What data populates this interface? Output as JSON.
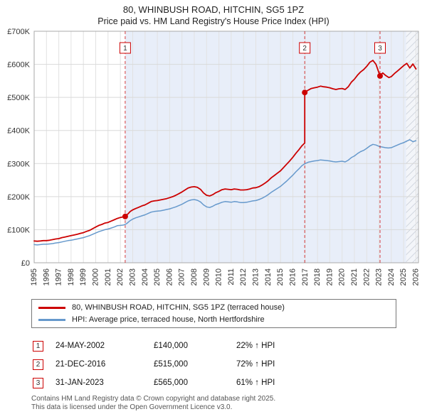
{
  "header": {
    "title": "80, WHINBUSH ROAD, HITCHIN, SG5 1PZ",
    "subtitle": "Price paid vs. HM Land Registry's House Price Index (HPI)"
  },
  "legend": {
    "items": [
      {
        "label": "80, WHINBUSH ROAD, HITCHIN, SG5 1PZ (terraced house)",
        "color": "#cc0000"
      },
      {
        "label": "HPI: Average price, terraced house, North Hertfordshire",
        "color": "#6699cc"
      }
    ]
  },
  "sales": [
    {
      "num": "1",
      "date": "24-MAY-2002",
      "price": "£140,000",
      "vs_hpi": "22% ↑ HPI",
      "year": 2002.39,
      "value": 140000
    },
    {
      "num": "2",
      "date": "21-DEC-2016",
      "price": "£515,000",
      "vs_hpi": "72% ↑ HPI",
      "year": 2016.97,
      "value": 515000
    },
    {
      "num": "3",
      "date": "31-JAN-2023",
      "price": "£565,000",
      "vs_hpi": "61% ↑ HPI",
      "year": 2023.08,
      "value": 565000
    }
  ],
  "footer": {
    "line1": "Contains HM Land Registry data © Crown copyright and database right 2025.",
    "line2": "This data is licensed under the Open Government Licence v3.0."
  },
  "chart_data": {
    "type": "line",
    "title": "80, WHINBUSH ROAD, HITCHIN, SG5 1PZ — Price paid vs. HPI",
    "x_min": 1995,
    "x_max": 2026.2,
    "y_min": 0,
    "y_max": 700000,
    "x_ticks": [
      1995,
      1996,
      1997,
      1998,
      1999,
      2000,
      2001,
      2002,
      2003,
      2004,
      2005,
      2006,
      2007,
      2008,
      2009,
      2010,
      2011,
      2012,
      2013,
      2014,
      2015,
      2016,
      2017,
      2018,
      2019,
      2020,
      2021,
      2022,
      2023,
      2024,
      2025,
      2026
    ],
    "y_ticks": [
      {
        "v": 0,
        "label": "£0"
      },
      {
        "v": 100000,
        "label": "£100K"
      },
      {
        "v": 200000,
        "label": "£200K"
      },
      {
        "v": 300000,
        "label": "£300K"
      },
      {
        "v": 400000,
        "label": "£400K"
      },
      {
        "v": 500000,
        "label": "£500K"
      },
      {
        "v": 600000,
        "label": "£600K"
      },
      {
        "v": 700000,
        "label": "£700K"
      }
    ],
    "shade": {
      "from": 2002.39,
      "to": 2026.2,
      "color": "#e8eef9"
    },
    "hatch": {
      "from": 2025.2,
      "to": 2026.2
    },
    "series": [
      {
        "name": "80, WHINBUSH ROAD, HITCHIN, SG5 1PZ (terraced house)",
        "color": "#cc0000",
        "points": [
          [
            1995.0,
            66000
          ],
          [
            1995.25,
            65000
          ],
          [
            1995.5,
            66000
          ],
          [
            1995.75,
            67000
          ],
          [
            1996.0,
            67000
          ],
          [
            1996.25,
            68000
          ],
          [
            1996.5,
            70000
          ],
          [
            1996.75,
            72000
          ],
          [
            1997.0,
            73000
          ],
          [
            1997.25,
            76000
          ],
          [
            1997.5,
            78000
          ],
          [
            1997.75,
            80000
          ],
          [
            1998.0,
            82000
          ],
          [
            1998.25,
            84000
          ],
          [
            1998.5,
            86000
          ],
          [
            1998.75,
            89000
          ],
          [
            1999.0,
            91000
          ],
          [
            1999.25,
            95000
          ],
          [
            1999.5,
            98000
          ],
          [
            1999.75,
            103000
          ],
          [
            2000.0,
            108000
          ],
          [
            2000.25,
            113000
          ],
          [
            2000.5,
            116000
          ],
          [
            2000.75,
            120000
          ],
          [
            2001.0,
            122000
          ],
          [
            2001.25,
            126000
          ],
          [
            2001.5,
            130000
          ],
          [
            2001.75,
            134000
          ],
          [
            2002.0,
            137000
          ],
          [
            2002.39,
            140000
          ],
          [
            2002.6,
            147000
          ],
          [
            2002.8,
            155000
          ],
          [
            2003.0,
            160000
          ],
          [
            2003.25,
            164000
          ],
          [
            2003.5,
            168000
          ],
          [
            2003.75,
            172000
          ],
          [
            2004.0,
            175000
          ],
          [
            2004.25,
            180000
          ],
          [
            2004.5,
            185000
          ],
          [
            2004.75,
            187000
          ],
          [
            2005.0,
            188000
          ],
          [
            2005.25,
            190000
          ],
          [
            2005.5,
            192000
          ],
          [
            2005.75,
            194000
          ],
          [
            2006.0,
            197000
          ],
          [
            2006.25,
            200000
          ],
          [
            2006.5,
            204000
          ],
          [
            2006.75,
            209000
          ],
          [
            2007.0,
            214000
          ],
          [
            2007.25,
            220000
          ],
          [
            2007.5,
            226000
          ],
          [
            2007.75,
            229000
          ],
          [
            2008.0,
            230000
          ],
          [
            2008.25,
            228000
          ],
          [
            2008.5,
            222000
          ],
          [
            2008.75,
            211000
          ],
          [
            2009.0,
            204000
          ],
          [
            2009.25,
            202000
          ],
          [
            2009.5,
            206000
          ],
          [
            2009.75,
            212000
          ],
          [
            2010.0,
            216000
          ],
          [
            2010.25,
            221000
          ],
          [
            2010.5,
            223000
          ],
          [
            2010.75,
            222000
          ],
          [
            2011.0,
            221000
          ],
          [
            2011.25,
            223000
          ],
          [
            2011.5,
            222000
          ],
          [
            2011.75,
            220000
          ],
          [
            2012.0,
            220000
          ],
          [
            2012.25,
            221000
          ],
          [
            2012.5,
            223000
          ],
          [
            2012.75,
            226000
          ],
          [
            2013.0,
            227000
          ],
          [
            2013.25,
            230000
          ],
          [
            2013.5,
            235000
          ],
          [
            2013.75,
            241000
          ],
          [
            2014.0,
            248000
          ],
          [
            2014.25,
            257000
          ],
          [
            2014.5,
            264000
          ],
          [
            2014.75,
            271000
          ],
          [
            2015.0,
            278000
          ],
          [
            2015.25,
            288000
          ],
          [
            2015.5,
            298000
          ],
          [
            2015.75,
            308000
          ],
          [
            2016.0,
            319000
          ],
          [
            2016.25,
            331000
          ],
          [
            2016.5,
            342000
          ],
          [
            2016.75,
            354000
          ],
          [
            2016.97,
            362000
          ],
          [
            2016.97,
            515000
          ],
          [
            2017.25,
            522000
          ],
          [
            2017.5,
            527000
          ],
          [
            2017.75,
            529000
          ],
          [
            2018.0,
            531000
          ],
          [
            2018.25,
            534000
          ],
          [
            2018.5,
            532000
          ],
          [
            2018.75,
            531000
          ],
          [
            2019.0,
            529000
          ],
          [
            2019.25,
            526000
          ],
          [
            2019.5,
            524000
          ],
          [
            2019.75,
            526000
          ],
          [
            2020.0,
            527000
          ],
          [
            2020.25,
            524000
          ],
          [
            2020.5,
            532000
          ],
          [
            2020.75,
            546000
          ],
          [
            2021.0,
            555000
          ],
          [
            2021.25,
            567000
          ],
          [
            2021.5,
            577000
          ],
          [
            2021.75,
            584000
          ],
          [
            2022.0,
            594000
          ],
          [
            2022.25,
            606000
          ],
          [
            2022.5,
            612000
          ],
          [
            2022.75,
            600000
          ],
          [
            2023.08,
            565000
          ],
          [
            2023.3,
            574000
          ],
          [
            2023.55,
            566000
          ],
          [
            2023.8,
            560000
          ],
          [
            2024.0,
            563000
          ],
          [
            2024.25,
            572000
          ],
          [
            2024.5,
            580000
          ],
          [
            2024.75,
            588000
          ],
          [
            2025.0,
            596000
          ],
          [
            2025.25,
            603000
          ],
          [
            2025.5,
            589000
          ],
          [
            2025.75,
            601000
          ],
          [
            2026.0,
            586000
          ]
        ]
      },
      {
        "name": "HPI: Average price, terraced house, North Hertfordshire",
        "color": "#6699cc",
        "points": [
          [
            1995.0,
            55000
          ],
          [
            1995.25,
            54000
          ],
          [
            1995.5,
            55000
          ],
          [
            1995.75,
            56000
          ],
          [
            1996.0,
            56000
          ],
          [
            1996.25,
            57000
          ],
          [
            1996.5,
            58000
          ],
          [
            1996.75,
            60000
          ],
          [
            1997.0,
            61000
          ],
          [
            1997.25,
            63000
          ],
          [
            1997.5,
            65000
          ],
          [
            1997.75,
            67000
          ],
          [
            1998.0,
            68000
          ],
          [
            1998.25,
            70000
          ],
          [
            1998.5,
            72000
          ],
          [
            1998.75,
            74000
          ],
          [
            1999.0,
            76000
          ],
          [
            1999.25,
            79000
          ],
          [
            1999.5,
            82000
          ],
          [
            1999.75,
            86000
          ],
          [
            2000.0,
            90000
          ],
          [
            2000.25,
            94000
          ],
          [
            2000.5,
            97000
          ],
          [
            2000.75,
            100000
          ],
          [
            2001.0,
            102000
          ],
          [
            2001.25,
            105000
          ],
          [
            2001.5,
            108000
          ],
          [
            2001.75,
            112000
          ],
          [
            2002.0,
            113000
          ],
          [
            2002.25,
            114000
          ],
          [
            2002.5,
            118000
          ],
          [
            2002.75,
            126000
          ],
          [
            2003.0,
            132000
          ],
          [
            2003.25,
            136000
          ],
          [
            2003.5,
            139000
          ],
          [
            2003.75,
            142000
          ],
          [
            2004.0,
            145000
          ],
          [
            2004.25,
            149000
          ],
          [
            2004.5,
            153000
          ],
          [
            2004.75,
            155000
          ],
          [
            2005.0,
            156000
          ],
          [
            2005.25,
            157000
          ],
          [
            2005.5,
            159000
          ],
          [
            2005.75,
            161000
          ],
          [
            2006.0,
            163000
          ],
          [
            2006.25,
            166000
          ],
          [
            2006.5,
            169000
          ],
          [
            2006.75,
            173000
          ],
          [
            2007.0,
            177000
          ],
          [
            2007.25,
            182000
          ],
          [
            2007.5,
            187000
          ],
          [
            2007.75,
            190000
          ],
          [
            2008.0,
            191000
          ],
          [
            2008.25,
            189000
          ],
          [
            2008.5,
            184000
          ],
          [
            2008.75,
            175000
          ],
          [
            2009.0,
            169000
          ],
          [
            2009.25,
            167000
          ],
          [
            2009.5,
            171000
          ],
          [
            2009.75,
            176000
          ],
          [
            2010.0,
            179000
          ],
          [
            2010.25,
            183000
          ],
          [
            2010.5,
            185000
          ],
          [
            2010.75,
            184000
          ],
          [
            2011.0,
            183000
          ],
          [
            2011.25,
            185000
          ],
          [
            2011.5,
            184000
          ],
          [
            2011.75,
            182000
          ],
          [
            2012.0,
            182000
          ],
          [
            2012.25,
            183000
          ],
          [
            2012.5,
            185000
          ],
          [
            2012.75,
            187000
          ],
          [
            2013.0,
            188000
          ],
          [
            2013.25,
            191000
          ],
          [
            2013.5,
            195000
          ],
          [
            2013.75,
            200000
          ],
          [
            2014.0,
            206000
          ],
          [
            2014.25,
            213000
          ],
          [
            2014.5,
            219000
          ],
          [
            2014.75,
            225000
          ],
          [
            2015.0,
            231000
          ],
          [
            2015.25,
            239000
          ],
          [
            2015.5,
            247000
          ],
          [
            2015.75,
            256000
          ],
          [
            2016.0,
            265000
          ],
          [
            2016.25,
            275000
          ],
          [
            2016.5,
            284000
          ],
          [
            2016.75,
            294000
          ],
          [
            2017.0,
            300000
          ],
          [
            2017.25,
            304000
          ],
          [
            2017.5,
            306000
          ],
          [
            2017.75,
            308000
          ],
          [
            2018.0,
            309000
          ],
          [
            2018.25,
            311000
          ],
          [
            2018.5,
            310000
          ],
          [
            2018.75,
            309000
          ],
          [
            2019.0,
            308000
          ],
          [
            2019.25,
            306000
          ],
          [
            2019.5,
            305000
          ],
          [
            2019.75,
            306000
          ],
          [
            2020.0,
            307000
          ],
          [
            2020.25,
            305000
          ],
          [
            2020.5,
            310000
          ],
          [
            2020.75,
            318000
          ],
          [
            2021.0,
            323000
          ],
          [
            2021.25,
            330000
          ],
          [
            2021.5,
            336000
          ],
          [
            2021.75,
            340000
          ],
          [
            2022.0,
            346000
          ],
          [
            2022.25,
            353000
          ],
          [
            2022.5,
            358000
          ],
          [
            2022.75,
            356000
          ],
          [
            2023.0,
            352000
          ],
          [
            2023.25,
            350000
          ],
          [
            2023.5,
            348000
          ],
          [
            2023.75,
            347000
          ],
          [
            2024.0,
            348000
          ],
          [
            2024.25,
            352000
          ],
          [
            2024.5,
            356000
          ],
          [
            2024.75,
            360000
          ],
          [
            2025.0,
            363000
          ],
          [
            2025.25,
            368000
          ],
          [
            2025.5,
            372000
          ],
          [
            2025.75,
            366000
          ],
          [
            2026.0,
            369000
          ]
        ]
      }
    ]
  }
}
